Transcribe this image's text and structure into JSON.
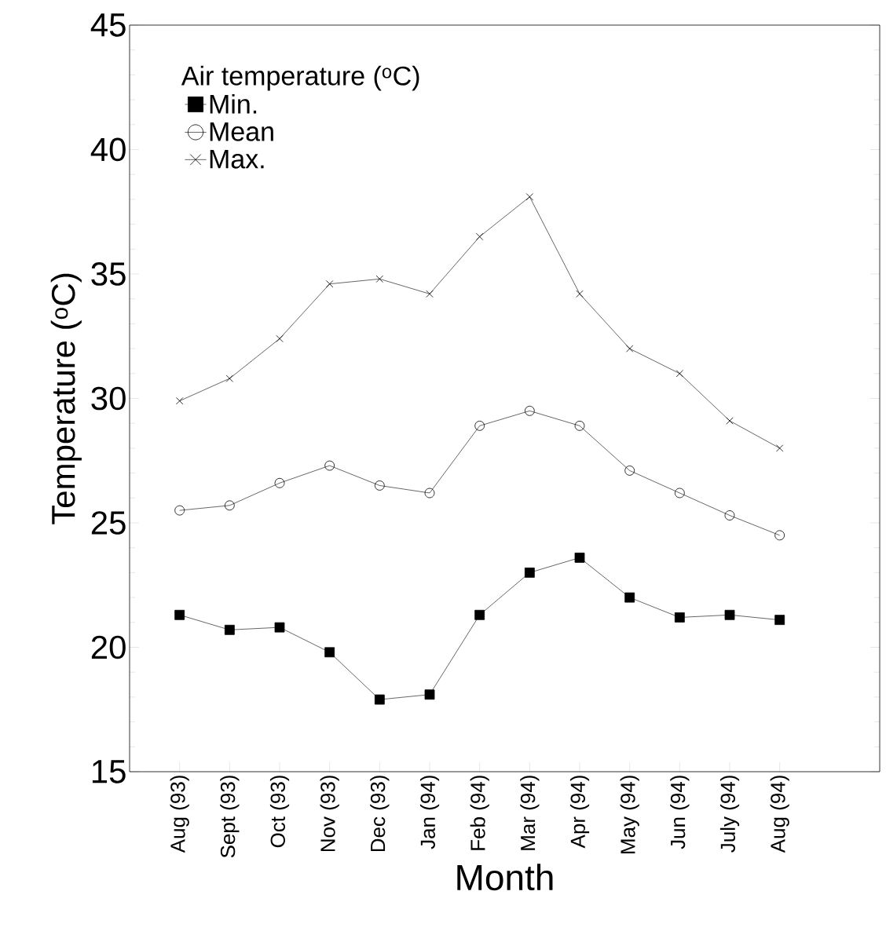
{
  "chart_data": {
    "type": "line",
    "xlabel": "Month",
    "ylabel": "Temperature ($^{o}$C)",
    "legend_title": "Air temperature ($^{o}$C)",
    "categories": [
      "Aug (93)",
      "Sept (93)",
      "Oct (93)",
      "Nov (93)",
      "Dec (93)",
      "Jan (94)",
      "Feb (94)",
      "Mar (94)",
      "Apr (94)",
      "May (94)",
      "Jun (94)",
      "July (94)",
      "Aug (94)"
    ],
    "series": [
      {
        "name": "Min.",
        "color": "#000000",
        "marker": "square",
        "values": [
          21.3,
          20.7,
          20.8,
          19.8,
          17.9,
          18.1,
          21.3,
          23.0,
          23.6,
          22.0,
          21.2,
          21.3,
          21.1
        ]
      },
      {
        "name": "Mean",
        "color": "#000000",
        "marker": "circle",
        "values": [
          25.5,
          25.7,
          26.6,
          27.3,
          26.5,
          26.2,
          28.9,
          29.5,
          28.9,
          27.1,
          26.2,
          25.3,
          24.5
        ]
      },
      {
        "name": "Max.",
        "color": "#000000",
        "marker": "cross",
        "values": [
          29.9,
          30.8,
          32.4,
          34.6,
          34.8,
          34.2,
          36.5,
          38.1,
          34.2,
          32.0,
          31.0,
          29.1,
          28.0
        ]
      }
    ],
    "ylim": [
      15,
      45
    ],
    "yticks": [
      15,
      20,
      25,
      30,
      35,
      40,
      45
    ],
    "legend": "top left"
  }
}
